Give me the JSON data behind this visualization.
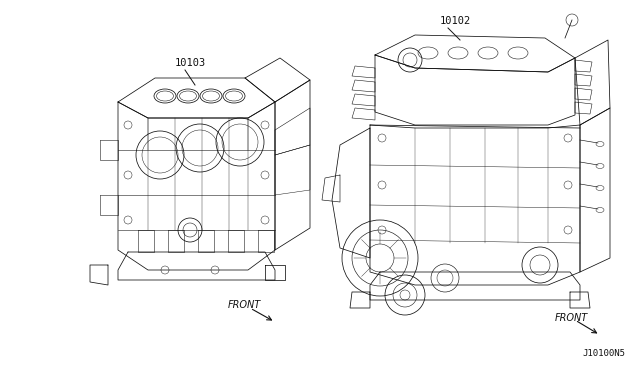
{
  "bg_color": "#ffffff",
  "fig_width": 6.4,
  "fig_height": 3.72,
  "dpi": 100,
  "label_left_part": "10103",
  "label_right_part": "10102",
  "label_left_front": "FRONT",
  "label_right_front": "FRONT",
  "diagram_ref": "J10100N5",
  "line_color": "#111111",
  "text_color": "#111111",
  "label_fontsize": 7.5,
  "front_fontsize": 7.0,
  "ref_fontsize": 6.5
}
